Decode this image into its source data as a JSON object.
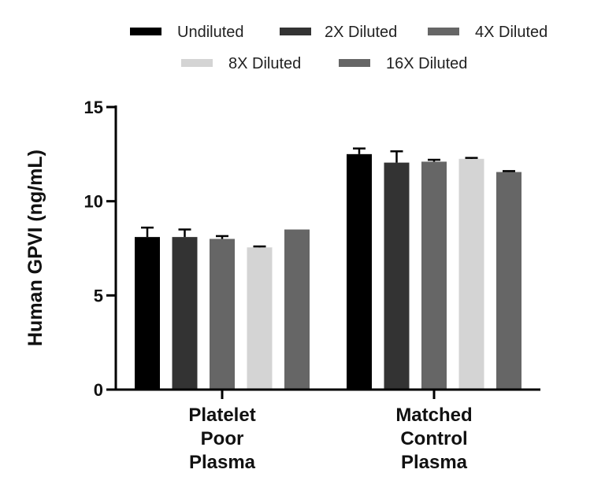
{
  "chart_data": {
    "type": "bar",
    "title": "",
    "xlabel": "",
    "ylabel": "Human GPVI (ng/mL)",
    "ylim": [
      0,
      15
    ],
    "yticks": [
      0,
      5,
      10,
      15
    ],
    "categories": [
      [
        "Platelet",
        "Poor",
        "Plasma"
      ],
      [
        "Matched",
        "Control",
        "Plasma"
      ]
    ],
    "legend_position": "top",
    "series": [
      {
        "name": "Undiluted",
        "color": "#000000",
        "values": [
          8.1,
          12.5
        ],
        "errors": [
          0.5,
          0.3
        ]
      },
      {
        "name": "2X Diluted",
        "color": "#333333",
        "values": [
          8.1,
          12.05
        ],
        "errors": [
          0.4,
          0.6
        ]
      },
      {
        "name": "4X Diluted",
        "color": "#666666",
        "values": [
          8.0,
          12.1
        ],
        "errors": [
          0.15,
          0.1
        ]
      },
      {
        "name": "8X Diluted",
        "color": "#d4d4d4",
        "values": [
          7.55,
          12.25
        ],
        "errors": [
          0.05,
          0.05
        ]
      },
      {
        "name": "16X Diluted",
        "color": "#666666",
        "values": [
          8.5,
          11.55
        ],
        "errors": [
          0,
          0.05
        ]
      }
    ]
  }
}
